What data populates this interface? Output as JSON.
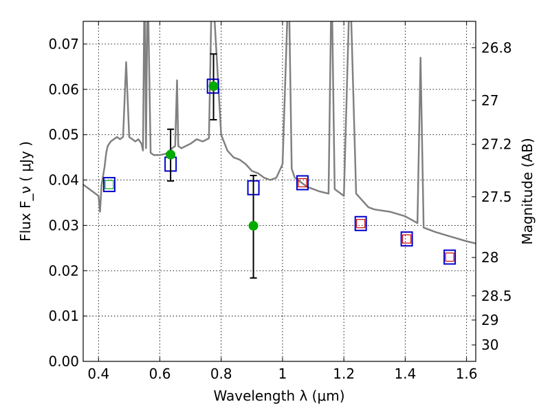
{
  "chart_data": {
    "type": "scatter",
    "title": "",
    "xlabel": "Wavelength  λ (μm)",
    "ylabel": "Flux  F_ν  ( μJy )",
    "y2label": "Magnitude (AB)",
    "xlim": [
      0.35,
      1.63
    ],
    "ylim": [
      0.0,
      0.075
    ],
    "grid": true,
    "x_ticks": [
      {
        "value": 0.4,
        "label": "0.4"
      },
      {
        "value": 0.6,
        "label": "0.6"
      },
      {
        "value": 0.8,
        "label": "0.8"
      },
      {
        "value": 1.0,
        "label": "1"
      },
      {
        "value": 1.2,
        "label": "1.2"
      },
      {
        "value": 1.4,
        "label": "1.4"
      },
      {
        "value": 1.6,
        "label": "1.6"
      }
    ],
    "y_ticks": [
      {
        "value": 0.0,
        "label": "0.00"
      },
      {
        "value": 0.01,
        "label": "0.01"
      },
      {
        "value": 0.02,
        "label": "0.02"
      },
      {
        "value": 0.03,
        "label": "0.03"
      },
      {
        "value": 0.04,
        "label": "0.04"
      },
      {
        "value": 0.05,
        "label": "0.05"
      },
      {
        "value": 0.06,
        "label": "0.06"
      },
      {
        "value": 0.07,
        "label": "0.07"
      }
    ],
    "y2_ticks": [
      {
        "value": 26.8,
        "label": "26.8"
      },
      {
        "value": 27.0,
        "label": "27"
      },
      {
        "value": 27.2,
        "label": "27.2"
      },
      {
        "value": 27.5,
        "label": "27.5"
      },
      {
        "value": 28.0,
        "label": "28"
      },
      {
        "value": 28.5,
        "label": "28.5"
      },
      {
        "value": 29.0,
        "label": "29"
      },
      {
        "value": 30.0,
        "label": "30"
      }
    ],
    "series": [
      {
        "kind": "line",
        "color": "#808080",
        "x": [
          0.35,
          0.38,
          0.4,
          0.405,
          0.41,
          0.42,
          0.425,
          0.43,
          0.44,
          0.45,
          0.46,
          0.47,
          0.48,
          0.49,
          0.5,
          0.51,
          0.52,
          0.53,
          0.54,
          0.545,
          0.55,
          0.555,
          0.56,
          0.57,
          0.58,
          0.6,
          0.62,
          0.64,
          0.65,
          0.656,
          0.66,
          0.67,
          0.7,
          0.72,
          0.74,
          0.76,
          0.77,
          0.8,
          0.82,
          0.84,
          0.86,
          0.88,
          0.9,
          0.92,
          0.94,
          0.96,
          0.98,
          1.0,
          1.02,
          1.03,
          1.04,
          1.06,
          1.08,
          1.1,
          1.12,
          1.15,
          1.16,
          1.17,
          1.2,
          1.22,
          1.24,
          1.26,
          1.28,
          1.3,
          1.35,
          1.4,
          1.44,
          1.45,
          1.46,
          1.5,
          1.55,
          1.6,
          1.63
        ],
        "y": [
          0.039,
          0.0375,
          0.0365,
          0.033,
          0.039,
          0.043,
          0.046,
          0.0475,
          0.0485,
          0.049,
          0.0495,
          0.049,
          0.0495,
          0.066,
          0.0495,
          0.049,
          0.0485,
          0.049,
          0.048,
          0.0465,
          0.085,
          0.047,
          0.085,
          0.046,
          0.0455,
          0.0455,
          0.0458,
          0.047,
          0.0475,
          0.062,
          0.0475,
          0.047,
          0.048,
          0.049,
          0.0485,
          0.0492,
          0.085,
          0.05,
          0.0465,
          0.045,
          0.0445,
          0.0435,
          0.042,
          0.0415,
          0.0405,
          0.04,
          0.0405,
          0.0435,
          0.085,
          0.0425,
          0.0405,
          0.0395,
          0.0385,
          0.038,
          0.0375,
          0.037,
          0.085,
          0.038,
          0.0365,
          0.085,
          0.037,
          0.0355,
          0.034,
          0.0335,
          0.033,
          0.032,
          0.0305,
          0.067,
          0.0295,
          0.0285,
          0.0275,
          0.0265,
          0.026
        ]
      },
      {
        "kind": "model-squares-blue",
        "color": "#0000cc",
        "x": [
          0.435,
          0.635,
          0.773,
          0.905,
          1.065,
          1.255,
          1.405,
          1.545
        ],
        "y": [
          0.039,
          0.0435,
          0.0607,
          0.0383,
          0.0394,
          0.0304,
          0.027,
          0.023
        ]
      },
      {
        "kind": "inner-squares-green",
        "color": "#00aa00",
        "x": [
          0.435
        ],
        "y": [
          0.039
        ]
      },
      {
        "kind": "inner-squares-red",
        "color": "#cc0000",
        "x": [
          1.065,
          1.255,
          1.405,
          1.545
        ],
        "y": [
          0.0394,
          0.0304,
          0.027,
          0.023
        ]
      },
      {
        "kind": "observed-points",
        "color": "#00aa00",
        "x": [
          0.635,
          0.775,
          0.905
        ],
        "y": [
          0.0456,
          0.0607,
          0.0299
        ],
        "err_low": [
          0.0398,
          0.0533,
          0.0184
        ],
        "err_high": [
          0.0512,
          0.0678,
          0.041
        ]
      }
    ]
  }
}
